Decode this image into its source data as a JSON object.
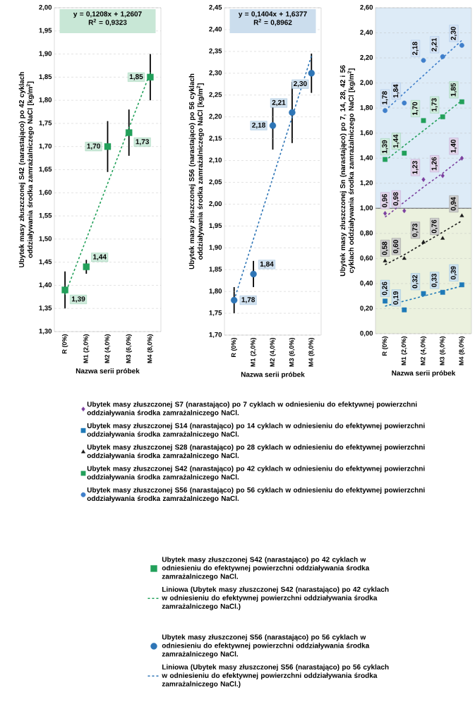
{
  "chart_data": [
    {
      "type": "scatter",
      "categories": [
        "R (0%)",
        "M1 (2,0%)",
        "M2 (4,0%)",
        "M3 (6,0%)",
        "M4 (8,0%)"
      ],
      "xlabel": "Nazwa serii próbek",
      "ylabel": "Ubytek masy złuszczonej S42 (narastająco) po 42 cyklach oddziaływania środka zamrażalniczego NaCl [kg/m$^{2}$]",
      "ylim": [
        1.3,
        2.0
      ],
      "yticks": [
        {
          "value": 1.3,
          "label": "1,30"
        },
        {
          "value": 1.35,
          "label": "1,35"
        },
        {
          "value": 1.4,
          "label": "1,40"
        },
        {
          "value": 1.45,
          "label": "1,45"
        },
        {
          "value": 1.5,
          "label": "1,50"
        },
        {
          "value": 1.55,
          "label": "1,55"
        },
        {
          "value": 1.6,
          "label": "1,60"
        },
        {
          "value": 1.65,
          "label": "1,65"
        },
        {
          "value": 1.7,
          "label": "1,70"
        },
        {
          "value": 1.75,
          "label": "1,75"
        },
        {
          "value": 1.8,
          "label": "1,80"
        },
        {
          "value": 1.85,
          "label": "1,85"
        },
        {
          "value": 1.9,
          "label": "1,90"
        },
        {
          "value": 1.95,
          "label": "1,95"
        },
        {
          "value": 2.0,
          "label": "2,00"
        }
      ],
      "grid": "y",
      "legend": "bottom",
      "annotations": [
        "y = 0,1208x + 1,2607",
        "R$^{2}$ = 0,9323"
      ],
      "series": [
        {
          "name": "Ubytek masy złuszczonej S42 (narastająco) po 42 cyklach w odniesieniu do efektywnej powierzchni oddziaływania środka zamrażalniczego NaCl.",
          "color": "#22a05a",
          "marker": "square",
          "values": [
            1.39,
            1.44,
            1.7,
            1.73,
            1.85
          ],
          "errors": [
            0.04,
            0.015,
            0.055,
            0.05,
            0.05
          ],
          "value_labels": [
            "1,39",
            "1,44",
            "1,70",
            "1,73",
            "1,85"
          ]
        },
        {
          "name": "Liniowa (Ubytek masy złuszczonej S42 (narastająco) po 42 cyklach w odniesieniu do efektywnej powierzchni oddziaływania środka zamrażalniczego NaCl.)",
          "type": "line",
          "color": "#22a05a",
          "line_style": "dashed",
          "marker": "none",
          "values": [
            1.38,
            1.5,
            1.62,
            1.74,
            1.86
          ]
        }
      ]
    },
    {
      "type": "scatter",
      "categories": [
        "R (0%)",
        "M1 (2,0%)",
        "M2 (4,0%)",
        "M3 (6,0%)",
        "M4 (8,0%)"
      ],
      "xlabel": "Nazwa serii próbek",
      "ylabel": "Ubytek masy złuszczonej S56 (narastająco) po 56 cyklach oddziaływania środka zamrażalniczego NaCl [kg/m$^{2}$]",
      "ylim": [
        1.7,
        2.45
      ],
      "yticks": [
        {
          "value": 1.7,
          "label": "1,70"
        },
        {
          "value": 1.75,
          "label": "1,75"
        },
        {
          "value": 1.8,
          "label": "1,80"
        },
        {
          "value": 1.85,
          "label": "1,85"
        },
        {
          "value": 1.9,
          "label": "1,90"
        },
        {
          "value": 1.95,
          "label": "1,95"
        },
        {
          "value": 2.0,
          "label": "2,00"
        },
        {
          "value": 2.05,
          "label": "2,05"
        },
        {
          "value": 2.1,
          "label": "2,10"
        },
        {
          "value": 2.15,
          "label": "2,15"
        },
        {
          "value": 2.2,
          "label": "2,20"
        },
        {
          "value": 2.25,
          "label": "2,25"
        },
        {
          "value": 2.3,
          "label": "2,30"
        },
        {
          "value": 2.35,
          "label": "2,35"
        },
        {
          "value": 2.4,
          "label": "2,40"
        },
        {
          "value": 2.45,
          "label": "2,45"
        }
      ],
      "grid": "y",
      "legend": "bottom",
      "annotations": [
        "y = 0,1404x + 1,6377",
        "R$^{2}$ = 0,8962"
      ],
      "series": [
        {
          "name": "Ubytek masy złuszczonej S56 (narastająco) po 56 cyklach w odniesieniu do efektywnej powierzchni oddziaływania środka zamrażalniczego NaCl.",
          "color": "#2e75b6",
          "marker": "circle",
          "values": [
            1.78,
            1.84,
            2.18,
            2.21,
            2.3
          ],
          "errors": [
            0.03,
            0.03,
            0.055,
            0.07,
            0.045
          ],
          "value_labels": [
            "1,78",
            "1,84",
            "2,18",
            "2,21",
            "2,30"
          ]
        },
        {
          "name": "Liniowa (Ubytek masy złuszczonej S56 (narastająco) po 56 cyklach w odniesieniu do efektywnej powierzchni oddziaływania środka zamrażalniczego NaCl.)",
          "type": "line",
          "color": "#2e75b6",
          "line_style": "dashed",
          "marker": "none",
          "values": [
            1.78,
            1.92,
            2.06,
            2.2,
            2.34
          ]
        }
      ]
    },
    {
      "type": "scatter",
      "categories": [
        "R (0%)",
        "M1 (2,0%)",
        "M2 (4,0%)",
        "M3 (6,0%)",
        "M4 (8,0%)"
      ],
      "xlabel": "Nazwa serii próbek",
      "ylabel": "Ubytek masy złuszczonej Sn (narastająco) po 7, 14, 28, 42 i 56 cyklach oddziaływania środka zamrażalniczego NaCl [kg/m$^{2}$]",
      "ylim": [
        0,
        2.6
      ],
      "yticks": [
        {
          "value": 0,
          "label": "0,00"
        },
        {
          "value": 0.2,
          "label": "0,20"
        },
        {
          "value": 0.4,
          "label": "0,40"
        },
        {
          "value": 0.6,
          "label": "0,60"
        },
        {
          "value": 0.8,
          "label": "0,80"
        },
        {
          "value": 1.0,
          "label": "1,00"
        },
        {
          "value": 1.2,
          "label": "1,20"
        },
        {
          "value": 1.4,
          "label": "1,40"
        },
        {
          "value": 1.6,
          "label": "1,60"
        },
        {
          "value": 1.8,
          "label": "1,80"
        },
        {
          "value": 2.0,
          "label": "2,00"
        },
        {
          "value": 2.2,
          "label": "2,20"
        },
        {
          "value": 2.4,
          "label": "2,40"
        },
        {
          "value": 2.6,
          "label": "2,60"
        }
      ],
      "grid": "y",
      "legend": "bottom",
      "bands": [
        {
          "axis": "y",
          "from": 1.0,
          "to": 2.6,
          "color": "#ddebf7"
        },
        {
          "axis": "y",
          "from": 0,
          "to": 1.0,
          "color": "#ebf1de"
        }
      ],
      "ref_lines": [
        {
          "axis": "y",
          "value": 1.0,
          "color": "#595959"
        }
      ],
      "series": [
        {
          "name": "Ubytek masy złuszczonej S7 (narastająco) po 7 cyklach w odniesieniu do efektywnej powierzchni oddziaływania środka zamrażalniczego NaCl.",
          "color": "#7b3f9e",
          "marker": "diamond",
          "values": [
            0.96,
            0.98,
            1.23,
            1.26,
            1.4
          ],
          "value_labels": [
            "0,96",
            "0,98",
            "1,23",
            "1,26",
            "1,40"
          ]
        },
        {
          "name": "Ubytek masy złuszczonej S14 (narastająco) po 14 cyklach w odniesieniu do efektywnej powierzchni oddziaływania środka zamrażalniczego NaCl.",
          "color": "#1f7ab8",
          "marker": "square",
          "values": [
            0.26,
            0.19,
            0.32,
            0.33,
            0.39
          ],
          "value_labels": [
            "0,26",
            "0,19",
            "0,32",
            "0,33",
            "0,39"
          ]
        },
        {
          "name": "Ubytek masy złuszczonej S28 (narastająco) po 28 cyklach w odniesieniu do efektywnej powierzchni oddziaływania środka zamrażalniczego NaCl.",
          "color": "#1a1a1a",
          "marker": "triangle",
          "values": [
            0.58,
            0.6,
            0.73,
            0.76,
            0.94
          ],
          "value_labels": [
            "0,58",
            "0,60",
            "0,73",
            "0,76",
            "0,94"
          ]
        },
        {
          "name": "Ubytek masy złuszczonej S42 (narastająco) po 42 cyklach w odniesieniu do efektywnej powierzchni oddziaływania środka zamrażalniczego NaCl.",
          "color": "#22a05a",
          "marker": "square",
          "values": [
            1.39,
            1.44,
            1.7,
            1.73,
            1.85
          ],
          "value_labels": [
            "1,39",
            "1,44",
            "1,70",
            "1,73",
            "1,85"
          ]
        },
        {
          "name": "Ubytek masy złuszczonej S56 (narastająco) po 56 cyklach w odniesieniu do efektywnej powierzchni oddziaływania środka zamrażalniczego NaCl.",
          "color": "#3f7fcb",
          "marker": "circle",
          "values": [
            1.78,
            1.84,
            2.18,
            2.21,
            2.3
          ],
          "value_labels": [
            "1,78",
            "1,84",
            "2,18",
            "2,21",
            "2,30"
          ]
        },
        {
          "type": "line",
          "color": "#7b3f9e",
          "line_style": "dashed",
          "marker": "none",
          "values": [
            0.93,
            1.05,
            1.17,
            1.28,
            1.4
          ]
        },
        {
          "type": "line",
          "color": "#1f7ab8",
          "line_style": "dashed",
          "marker": "none",
          "values": [
            0.22,
            0.26,
            0.3,
            0.34,
            0.38
          ]
        },
        {
          "type": "line",
          "color": "#1a1a1a",
          "line_style": "dashed",
          "marker": "none",
          "values": [
            0.55,
            0.63,
            0.72,
            0.81,
            0.9
          ]
        },
        {
          "type": "line",
          "color": "#22a05a",
          "line_style": "dashed",
          "marker": "none",
          "values": [
            1.38,
            1.5,
            1.62,
            1.74,
            1.86
          ]
        },
        {
          "type": "line",
          "color": "#3f7fcb",
          "line_style": "dashed",
          "marker": "none",
          "values": [
            1.78,
            1.92,
            2.06,
            2.2,
            2.34
          ]
        }
      ]
    }
  ]
}
